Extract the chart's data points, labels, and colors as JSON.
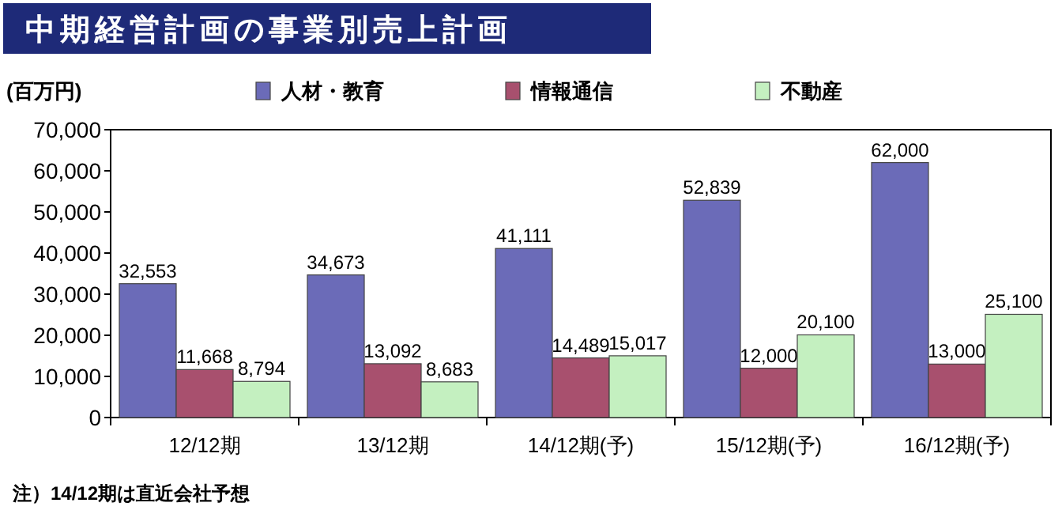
{
  "chart_data": {
    "type": "bar",
    "title": "中期経営計画の事業別売上計画",
    "ylabel": "(百万円)",
    "categories": [
      "12/12期",
      "13/12期",
      "14/12期(予)",
      "15/12期(予)",
      "16/12期(予)"
    ],
    "series": [
      {
        "name": "人材・教育",
        "color": "#6b6bb8",
        "values": [
          32553,
          34673,
          41111,
          52839,
          62000
        ],
        "value_labels": [
          "32,553",
          "34,673",
          "41,111",
          "52,839",
          "62,000"
        ]
      },
      {
        "name": "情報通信",
        "color": "#a8506e",
        "values": [
          11668,
          13092,
          14489,
          12000,
          13000
        ],
        "value_labels": [
          "11,668",
          "13,092",
          "14,489",
          "12,000",
          "13,000"
        ]
      },
      {
        "name": "不動産",
        "color": "#c4f0c0",
        "values": [
          8794,
          8683,
          15017,
          20100,
          25100
        ],
        "value_labels": [
          "8,794",
          "8,683",
          "15,017",
          "20,100",
          "25,100"
        ]
      }
    ],
    "ylim": [
      0,
      70000
    ],
    "yticks": [
      0,
      {
        "value": 10000,
        "label": "10,000"
      },
      {
        "value": 20000,
        "label": "20,000"
      },
      {
        "value": 30000,
        "label": "30,000"
      },
      {
        "value": 40000,
        "label": "40,000"
      },
      {
        "value": 50000,
        "label": "50,000"
      },
      {
        "value": 60000,
        "label": "60,000"
      },
      {
        "value": 70000,
        "label": "70,000"
      }
    ],
    "legend": "top",
    "grid": false,
    "annotations": [
      "注）14/12期は直近会社予想"
    ]
  }
}
